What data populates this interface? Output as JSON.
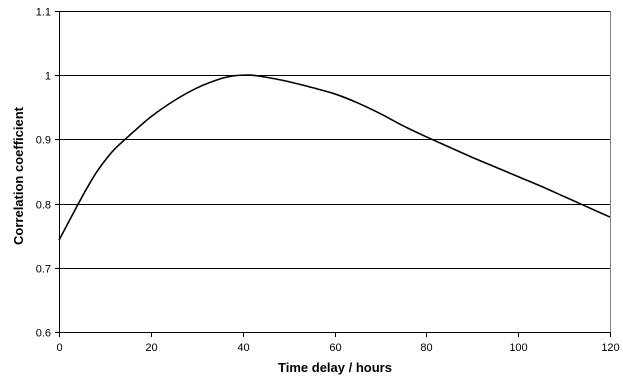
{
  "chart_data": {
    "type": "line",
    "title": "",
    "xlabel": "Time delay / hours",
    "ylabel": "Correlation coefficient",
    "xlim": [
      0,
      120
    ],
    "ylim": [
      0.6,
      1.1
    ],
    "xticks": [
      0,
      20,
      40,
      60,
      80,
      100,
      120
    ],
    "yticks": [
      0.6,
      0.7,
      0.8,
      0.9,
      1,
      1.1
    ],
    "ytick_labels": [
      "0.6",
      "0.7",
      "0.8",
      "0.9",
      "1",
      "1.1"
    ],
    "grid": "horizontal major gridlines",
    "legend": "none",
    "series": [
      {
        "color": "#000000",
        "x": [
          0,
          2,
          4,
          6,
          8,
          10,
          12,
          15,
          20,
          25,
          30,
          35,
          38,
          40,
          42,
          45,
          50,
          55,
          60,
          65,
          70,
          75,
          80,
          85,
          90,
          95,
          100,
          105,
          110,
          115,
          120
        ],
        "y": [
          0.743,
          0.77,
          0.797,
          0.823,
          0.847,
          0.867,
          0.884,
          0.904,
          0.935,
          0.96,
          0.98,
          0.994,
          0.999,
          1.0,
          1.0,
          0.997,
          0.99,
          0.981,
          0.971,
          0.957,
          0.94,
          0.921,
          0.904,
          0.888,
          0.872,
          0.857,
          0.842,
          0.827,
          0.811,
          0.795,
          0.779
        ]
      }
    ]
  }
}
